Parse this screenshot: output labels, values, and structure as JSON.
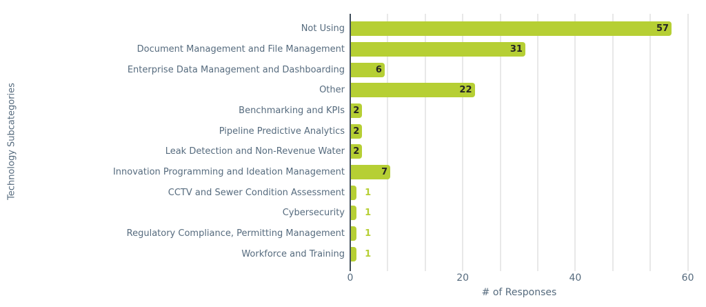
{
  "chart_data": {
    "type": "bar",
    "orientation": "horizontal",
    "title": "",
    "xlabel": "# of Responses",
    "ylabel": "Technology Subcategories",
    "categories": [
      "Not Using",
      "Document Management and File Management",
      "Enterprise Data Management and Dashboarding",
      "Other",
      "Benchmarking and KPIs",
      "Pipeline Predictive Analytics",
      "Leak Detection and Non-Revenue Water",
      "Innovation Programming and Ideation Management",
      "CCTV and Sewer Condition Assessment",
      "Cybersecurity",
      "Regulatory Compliance, Permitting Management",
      "Workforce and Training"
    ],
    "values": [
      57,
      31,
      6,
      22,
      2,
      2,
      2,
      7,
      1,
      1,
      1,
      1
    ],
    "xlim": [
      0,
      61.5
    ],
    "xticks": [
      0,
      20,
      40,
      60
    ],
    "gridline_step": 6.6667,
    "grid": true,
    "legend": "none",
    "colors": {
      "bar": "#b6cf34",
      "value_label_inside": "#252525",
      "value_label_outside": "#b6cf34",
      "axis_text": "#566b7e",
      "axis_line": "#3f4c5a",
      "gridline": "#e8e8e8",
      "background": "#ffffff"
    }
  }
}
